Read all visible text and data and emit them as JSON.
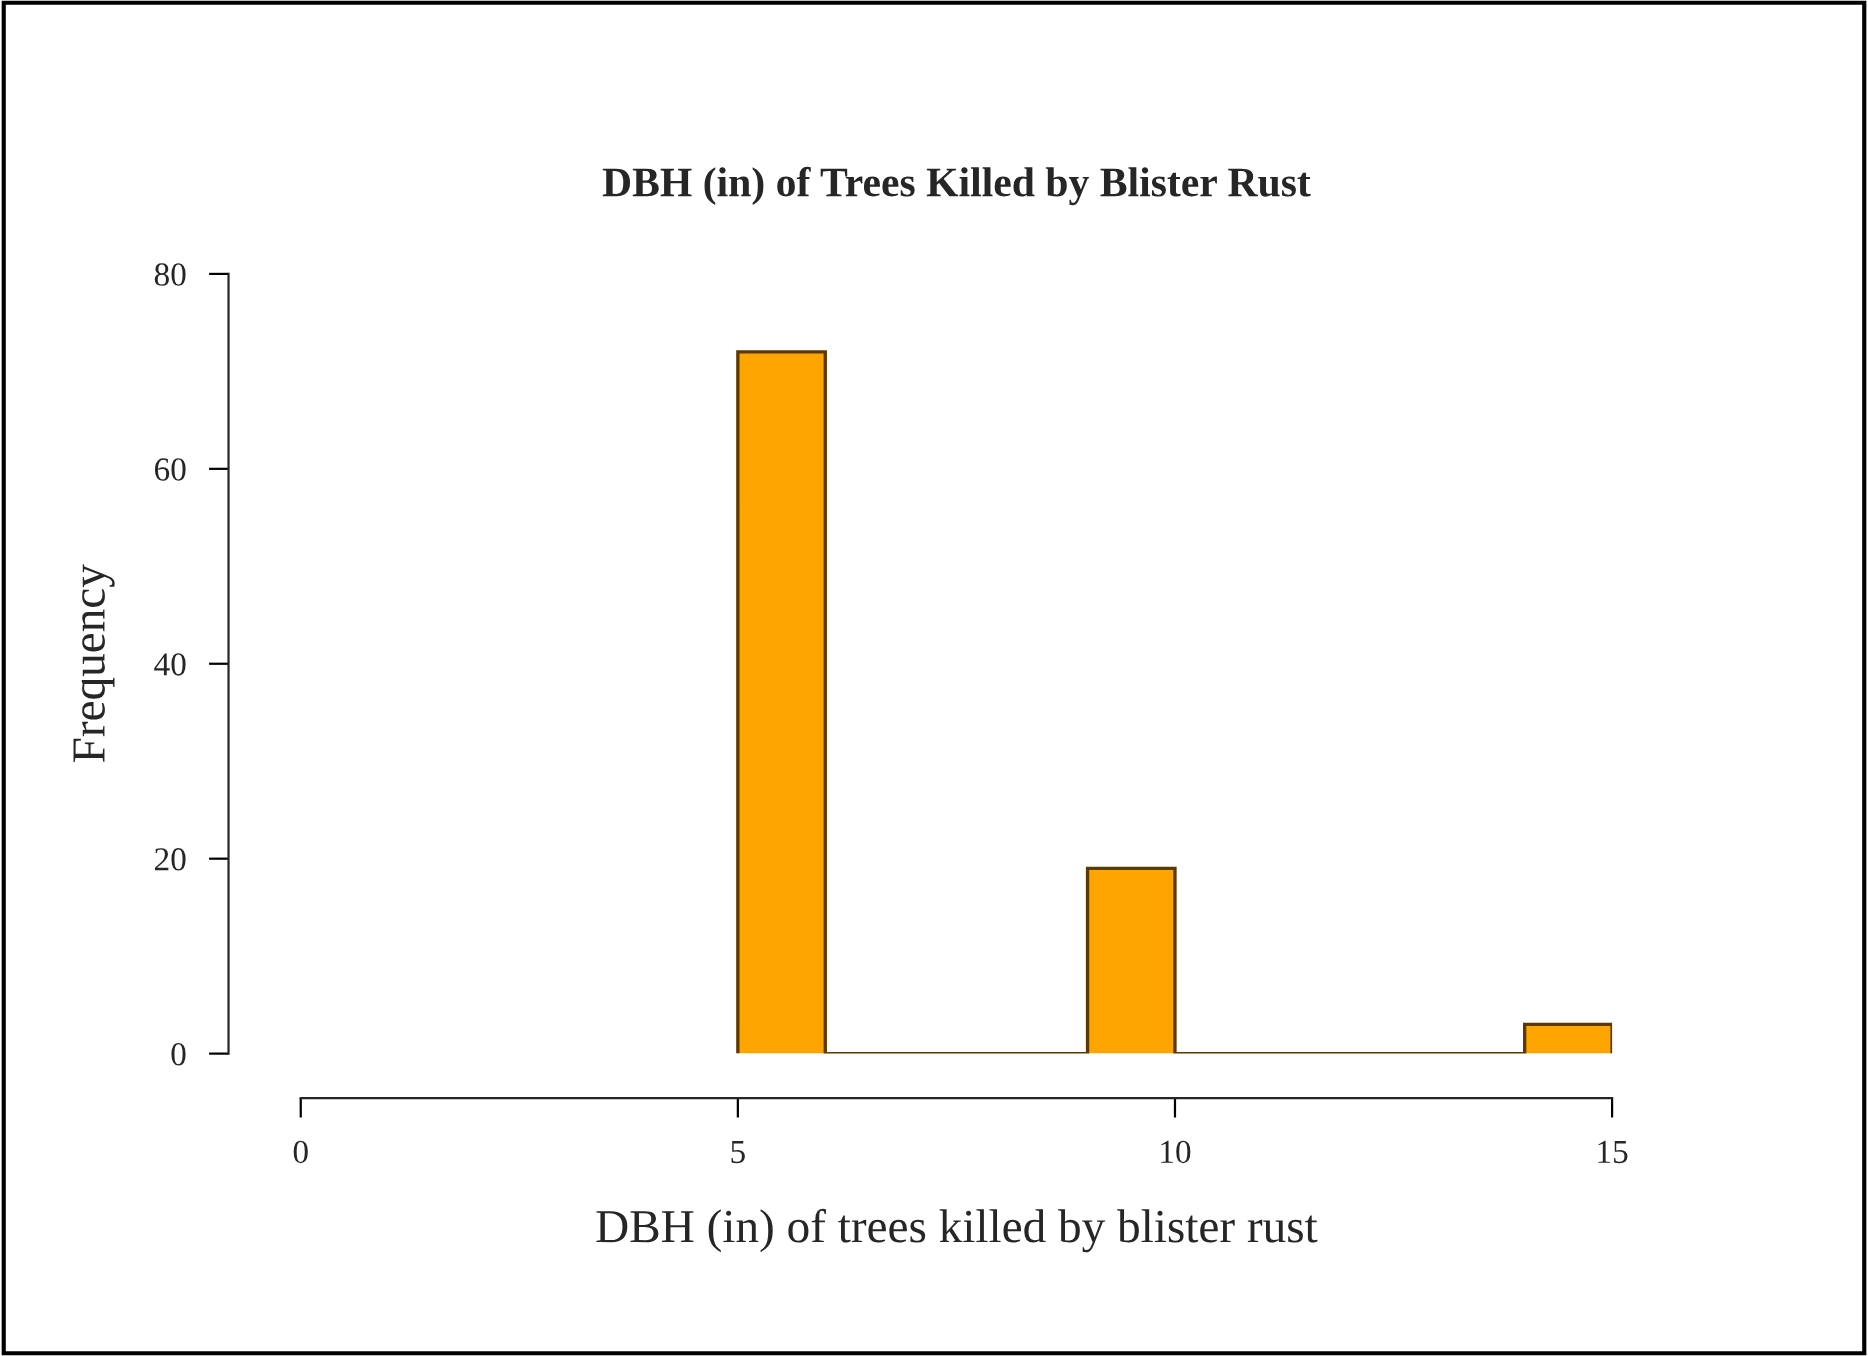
{
  "chart_data": {
    "type": "histogram",
    "title": "DBH (in) of Trees Killed by Blister Rust",
    "xlabel": "DBH (in) of trees killed by blister rust",
    "ylabel": "Frequency",
    "bins": [
      5,
      6,
      7,
      8,
      9,
      10,
      11,
      12,
      13,
      14,
      15
    ],
    "values": [
      72,
      0,
      0,
      0,
      19,
      0,
      0,
      0,
      0,
      3
    ],
    "color": "#ffa500",
    "xlim": [
      0,
      15
    ],
    "ylim": [
      0,
      80
    ],
    "xticks": [
      0,
      5,
      10,
      15
    ],
    "yticks": [
      0,
      20,
      40,
      60,
      80
    ],
    "grid": false
  }
}
